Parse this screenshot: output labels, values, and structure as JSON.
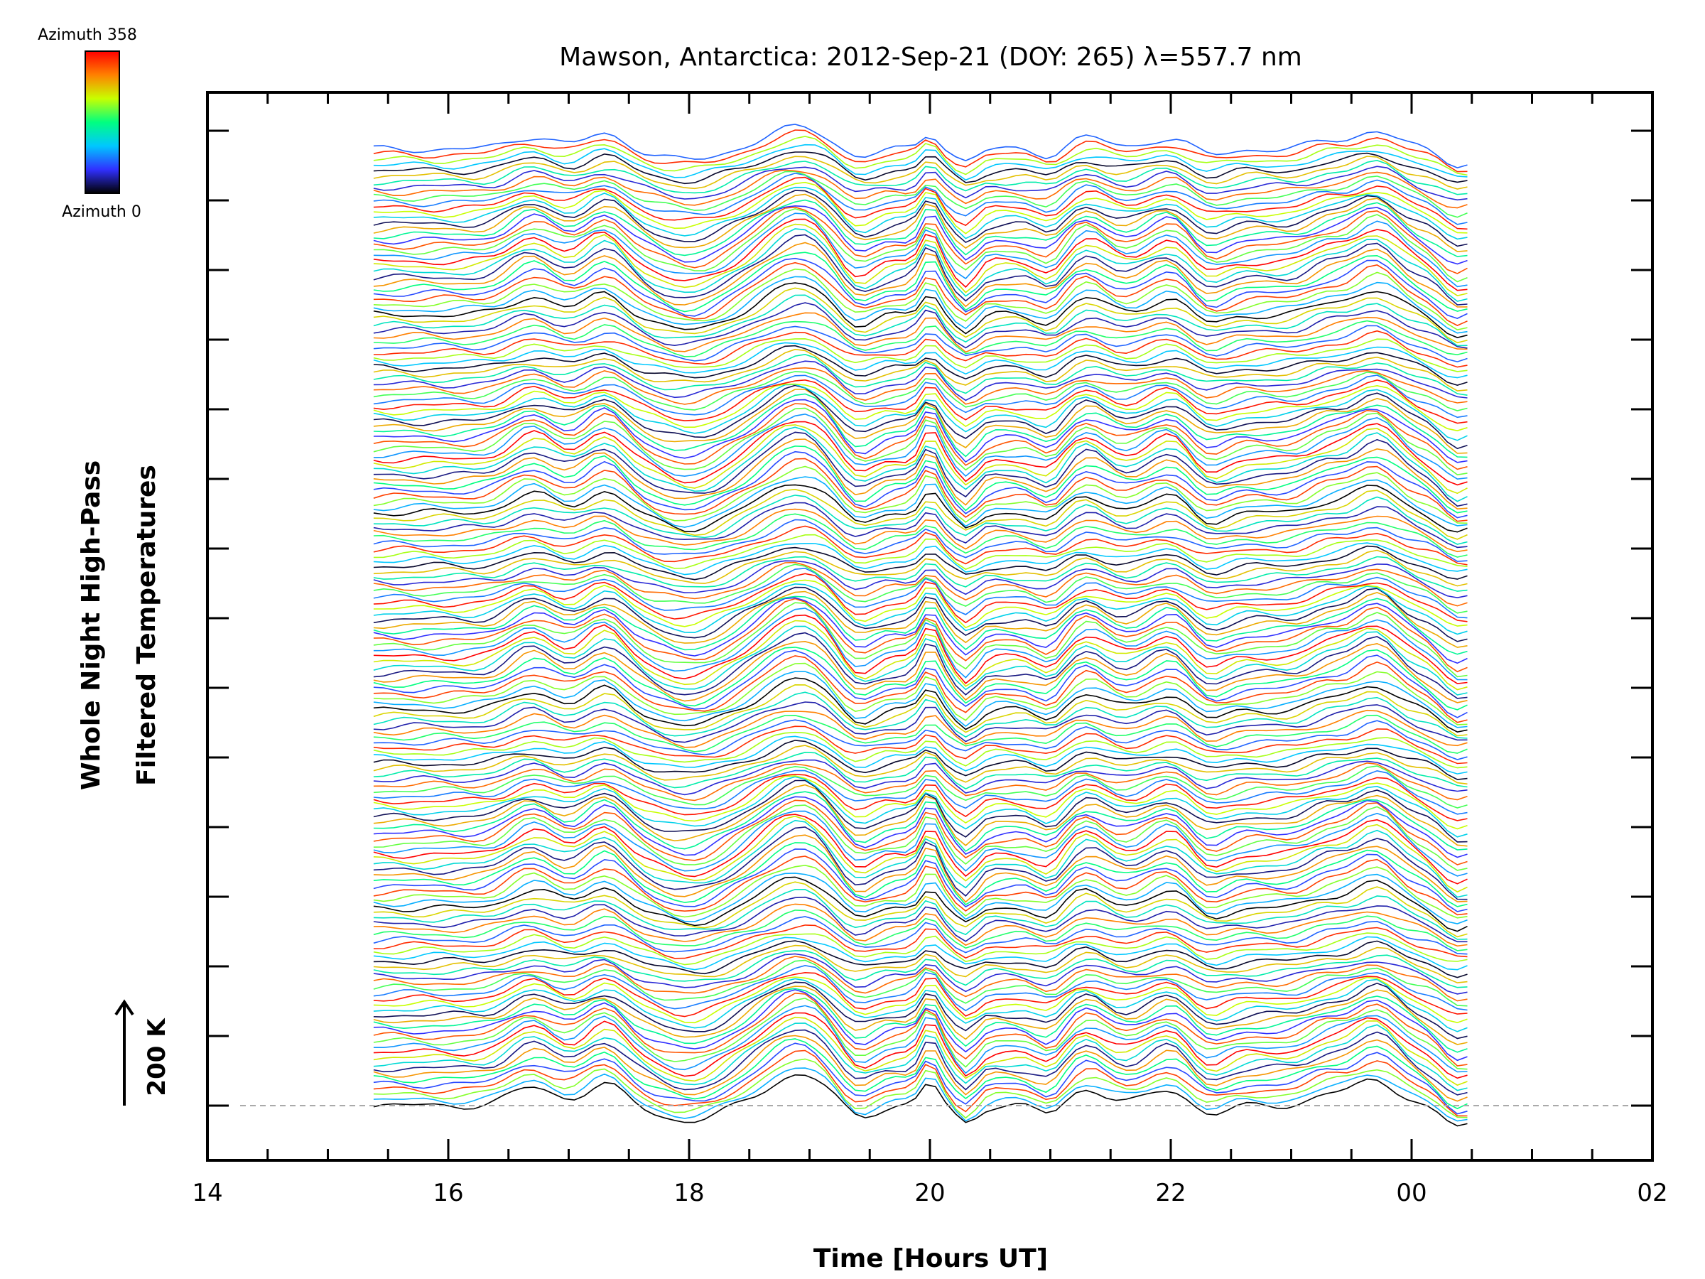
{
  "chart_data": {
    "type": "line",
    "title": "Mawson, Antarctica: 2012-Sep-21 (DOY: 265) λ=557.7 nm",
    "xlabel": "Time [Hours UT]",
    "ylabel_line1": "Whole Night High-Pass",
    "ylabel_line2": "Filtered Temperatures",
    "scale_label": "200 K",
    "colorbar": {
      "top_label": "Azimuth 358",
      "bottom_label": "Azimuth 0",
      "colors": [
        "#000000",
        "#3030ff",
        "#00c8ff",
        "#00ff80",
        "#c8ff00",
        "#ff8000",
        "#ff0000"
      ]
    },
    "x_ticks": [
      "14",
      "16",
      "18",
      "20",
      "22",
      "00",
      "02"
    ],
    "xlim": [
      14,
      26
    ],
    "data_x_range": [
      15.38,
      24.52
    ],
    "grid": false,
    "n_stacked_traces": 180,
    "baseline_dashed": true,
    "series_note": "stacked azimuth traces, colour encodes azimuth 0–358"
  }
}
